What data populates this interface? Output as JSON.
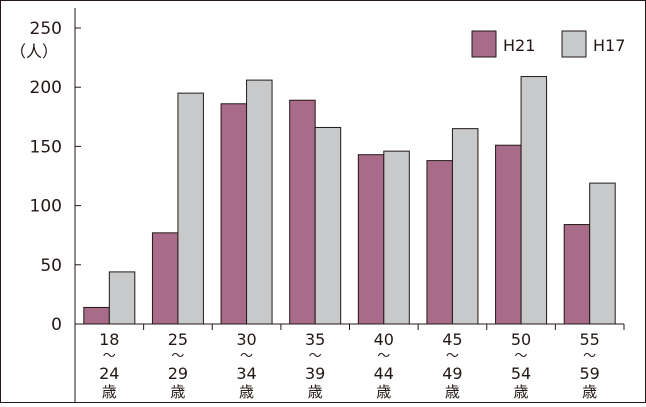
{
  "chart_data": {
    "type": "bar",
    "unit_label": "（人）",
    "categories": [
      {
        "from": "18",
        "sep": "〜",
        "to": "24",
        "suffix": "歳"
      },
      {
        "from": "25",
        "sep": "〜",
        "to": "29",
        "suffix": "歳"
      },
      {
        "from": "30",
        "sep": "〜",
        "to": "34",
        "suffix": "歳"
      },
      {
        "from": "35",
        "sep": "〜",
        "to": "39",
        "suffix": "歳"
      },
      {
        "from": "40",
        "sep": "〜",
        "to": "44",
        "suffix": "歳"
      },
      {
        "from": "45",
        "sep": "〜",
        "to": "49",
        "suffix": "歳"
      },
      {
        "from": "50",
        "sep": "〜",
        "to": "54",
        "suffix": "歳"
      },
      {
        "from": "55",
        "sep": "〜",
        "to": "59",
        "suffix": "歳"
      }
    ],
    "series": [
      {
        "name": "H21",
        "color": "#a86b8a",
        "values": [
          14,
          77,
          186,
          189,
          143,
          138,
          151,
          84
        ]
      },
      {
        "name": "H17",
        "color": "#c8c9ca",
        "values": [
          44,
          195,
          206,
          166,
          146,
          165,
          209,
          119
        ]
      }
    ],
    "ylim": [
      0,
      250
    ],
    "yticks": [
      0,
      50,
      100,
      150,
      200,
      250
    ],
    "legend_position": "top-right",
    "grid": false
  }
}
